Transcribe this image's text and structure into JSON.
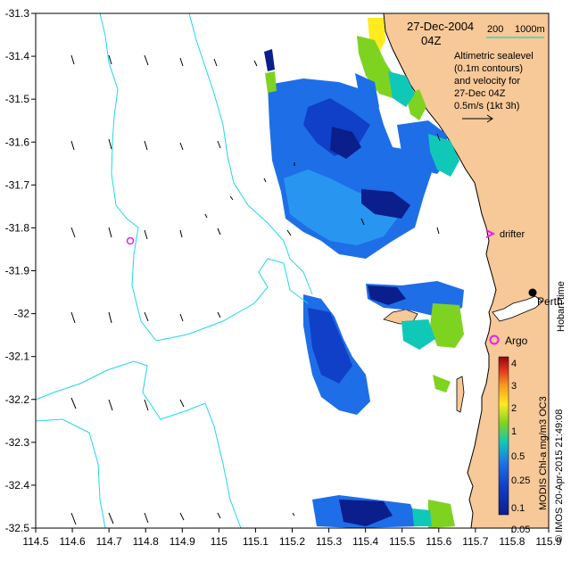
{
  "map": {
    "title_date": "27-Dec-2004",
    "title_time": "04Z",
    "scale_label": "200",
    "depth_label": "1000m",
    "legend_lines": [
      "Altimetric sealevel",
      "(0.1m contours)",
      "and velocity for",
      "27-Dec 04Z"
    ],
    "velocity_scale": "0.5m/s (1kt 3h)",
    "drifter_label": "drifter",
    "argo_label": "Argo",
    "city_label": "Perth",
    "hobart_label": "Hobart time",
    "credit_text": "© IMOS 20-Apr-2015 21:49:08",
    "product_text": "MODIS Chl-a mg/m3 OC3",
    "x_ticks": [
      "114.5",
      "114.6",
      "114.7",
      "114.8",
      "114.9",
      "115",
      "115.1",
      "115.2",
      "115.3",
      "115.4",
      "115.5",
      "115.6",
      "115.7",
      "115.8",
      "115.9"
    ],
    "y_ticks": [
      "-31.3",
      "-31.4",
      "-31.5",
      "-31.6",
      "-31.7",
      "-31.8",
      "-31.9",
      "-32",
      "-32.1",
      "-32.2",
      "-32.3",
      "-32.4",
      "-32.5"
    ],
    "colorbar_ticks": [
      "4",
      "3",
      "2",
      "1",
      "0.5",
      "0.25",
      "0.1",
      "0.05"
    ],
    "colors": {
      "land": "#F7C898",
      "contour": "#1FD6EE",
      "marker": "#E81FE8",
      "scale_bar": "#3FD0C0"
    }
  }
}
